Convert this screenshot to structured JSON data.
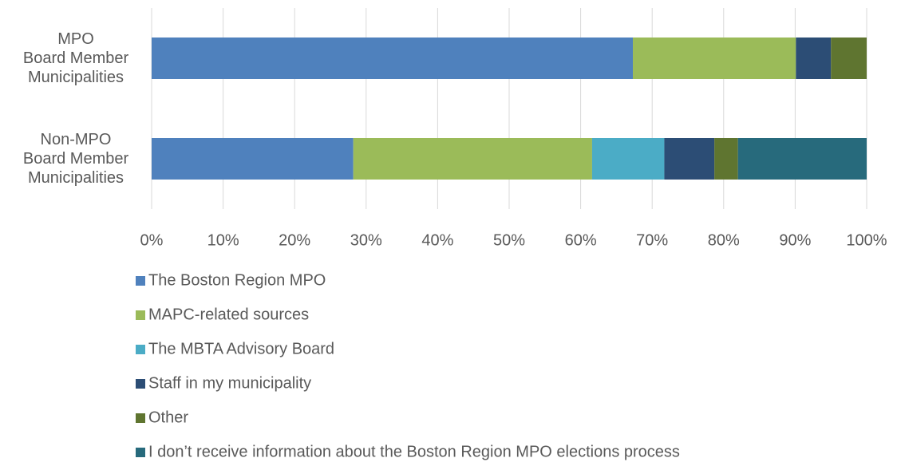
{
  "chart_data": {
    "type": "stacked-barh",
    "categories": [
      "MPO\nBoard Member\nMunicipalities",
      "Non-MPO\nBoard Member\nMunicipalities"
    ],
    "series": [
      {
        "name": "The Boston Region MPO",
        "color": "#4f81bd",
        "values": [
          67.3,
          28.2
        ]
      },
      {
        "name": "MAPC-related sources",
        "color": "#9bbb59",
        "values": [
          22.8,
          33.4
        ]
      },
      {
        "name": "The MBTA Advisory Board",
        "color": "#4bacc6",
        "values": [
          0,
          10.1
        ]
      },
      {
        "name": "Staff in my municipality",
        "color": "#2c4d75",
        "values": [
          4.9,
          7.0
        ]
      },
      {
        "name": "Other",
        "color": "#5f7530",
        "values": [
          5.0,
          3.3
        ]
      },
      {
        "name": "I don’t receive information about the Boston Region MPO elections process",
        "color": "#276a7c",
        "values": [
          0,
          18.0
        ]
      }
    ],
    "xlim": [
      0,
      100
    ],
    "xticks": [
      {
        "value": 0,
        "label": "0%"
      },
      {
        "value": 10,
        "label": "10%"
      },
      {
        "value": 20,
        "label": "20%"
      },
      {
        "value": 30,
        "label": "30%"
      },
      {
        "value": 40,
        "label": "40%"
      },
      {
        "value": 50,
        "label": "50%"
      },
      {
        "value": 60,
        "label": "60%"
      },
      {
        "value": 70,
        "label": "70%"
      },
      {
        "value": 80,
        "label": "80%"
      },
      {
        "value": 90,
        "label": "90%"
      },
      {
        "value": 100,
        "label": "100%"
      }
    ],
    "grid": true,
    "legend": "bottom"
  }
}
